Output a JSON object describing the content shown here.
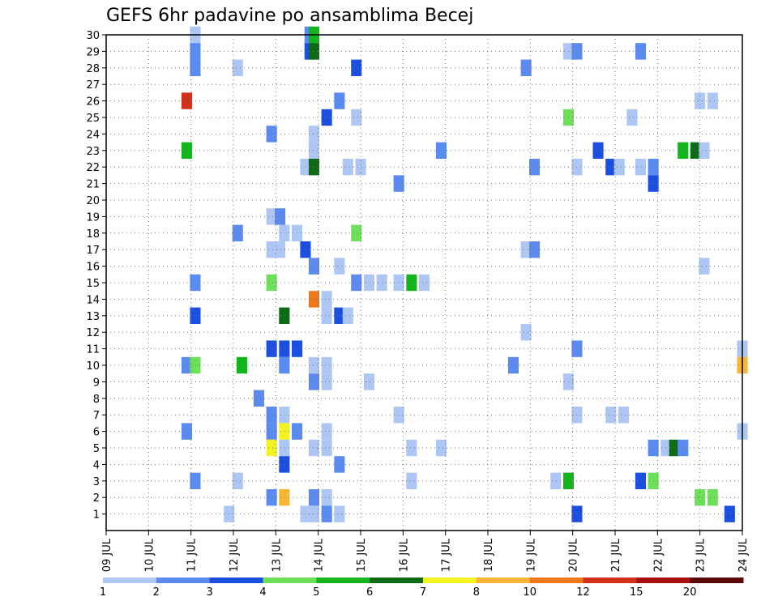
{
  "chart_data": {
    "type": "heatmap",
    "title": "GEFS 6hr padavine po ansamblima Becej",
    "xlabel": "",
    "ylabel": "",
    "x_ticks": [
      "09 JUL",
      "10 JUL",
      "11 JUL",
      "12 JUL",
      "13 JUL",
      "14 JUL",
      "15 JUL",
      "16 JUL",
      "17 JUL",
      "18 JUL",
      "19 JUL",
      "20 JUL",
      "21 JUL",
      "22 JUL",
      "23 JUL",
      "24 JUL"
    ],
    "x_range_days": [
      9,
      24
    ],
    "y_ticks": [
      1,
      2,
      3,
      4,
      5,
      6,
      7,
      8,
      9,
      10,
      11,
      12,
      13,
      14,
      15,
      16,
      17,
      18,
      19,
      20,
      21,
      22,
      23,
      24,
      25,
      26,
      27,
      28,
      29,
      30
    ],
    "y_range": [
      0,
      30
    ],
    "grid": true,
    "color_scale": {
      "labels": [
        "1",
        "2",
        "3",
        "4",
        "5",
        "6",
        "7",
        "8",
        "10",
        "12",
        "15",
        "20"
      ],
      "colors": [
        "#aec6f4",
        "#5b8af0",
        "#1c4fe0",
        "#6de05a",
        "#12b51c",
        "#0c6b14",
        "#f3f321",
        "#f6b637",
        "#f07818",
        "#d2301a",
        "#a80f0f",
        "#5a0a0a"
      ]
    },
    "note_values": "each cell = [day (x, fractional JUL day), member (y), precipitation class index into color_scale.colors]",
    "cells": [
      [
        11.1,
        30,
        0
      ],
      [
        13.8,
        30,
        1
      ],
      [
        13.9,
        30,
        4
      ],
      [
        11.1,
        29,
        1
      ],
      [
        13.8,
        29,
        2
      ],
      [
        13.9,
        29,
        5
      ],
      [
        19.9,
        29,
        0
      ],
      [
        20.1,
        29,
        1
      ],
      [
        21.6,
        29,
        1
      ],
      [
        11.1,
        28,
        1
      ],
      [
        12.1,
        28,
        0
      ],
      [
        14.9,
        28,
        2
      ],
      [
        18.9,
        28,
        1
      ],
      [
        10.9,
        26,
        9
      ],
      [
        14.5,
        26,
        1
      ],
      [
        23.0,
        26,
        0
      ],
      [
        23.3,
        26,
        0
      ],
      [
        14.2,
        25,
        2
      ],
      [
        14.9,
        25,
        0
      ],
      [
        19.9,
        25,
        3
      ],
      [
        21.4,
        25,
        0
      ],
      [
        12.9,
        24,
        1
      ],
      [
        13.9,
        24,
        0
      ],
      [
        10.9,
        23,
        4
      ],
      [
        13.9,
        23,
        0
      ],
      [
        16.9,
        23,
        1
      ],
      [
        20.6,
        23,
        2
      ],
      [
        22.6,
        23,
        4
      ],
      [
        22.9,
        23,
        5
      ],
      [
        23.1,
        23,
        0
      ],
      [
        13.7,
        22,
        0
      ],
      [
        13.9,
        22,
        5
      ],
      [
        14.7,
        22,
        0
      ],
      [
        15.0,
        22,
        0
      ],
      [
        19.1,
        22,
        1
      ],
      [
        20.1,
        22,
        0
      ],
      [
        20.9,
        22,
        2
      ],
      [
        21.1,
        22,
        0
      ],
      [
        21.6,
        22,
        0
      ],
      [
        21.9,
        22,
        1
      ],
      [
        15.9,
        21,
        1
      ],
      [
        21.9,
        21,
        2
      ],
      [
        12.9,
        19,
        0
      ],
      [
        13.1,
        19,
        1
      ],
      [
        12.1,
        18,
        1
      ],
      [
        13.2,
        18,
        0
      ],
      [
        13.5,
        18,
        0
      ],
      [
        14.9,
        18,
        3
      ],
      [
        12.9,
        17,
        0
      ],
      [
        13.1,
        17,
        0
      ],
      [
        13.7,
        17,
        2
      ],
      [
        18.9,
        17,
        0
      ],
      [
        19.1,
        17,
        1
      ],
      [
        13.9,
        16,
        1
      ],
      [
        14.5,
        16,
        0
      ],
      [
        23.1,
        16,
        0
      ],
      [
        11.1,
        15,
        1
      ],
      [
        12.9,
        15,
        3
      ],
      [
        14.9,
        15,
        1
      ],
      [
        15.2,
        15,
        0
      ],
      [
        15.5,
        15,
        0
      ],
      [
        15.9,
        15,
        0
      ],
      [
        16.2,
        15,
        4
      ],
      [
        16.5,
        15,
        0
      ],
      [
        13.9,
        14,
        8
      ],
      [
        14.2,
        14,
        0
      ],
      [
        11.1,
        13,
        2
      ],
      [
        13.2,
        13,
        5
      ],
      [
        14.2,
        13,
        0
      ],
      [
        14.5,
        13,
        2
      ],
      [
        14.7,
        13,
        0
      ],
      [
        18.9,
        12,
        0
      ],
      [
        12.9,
        11,
        2
      ],
      [
        13.2,
        11,
        2
      ],
      [
        13.5,
        11,
        2
      ],
      [
        20.1,
        11,
        1
      ],
      [
        24.0,
        11,
        0
      ],
      [
        10.9,
        10,
        1
      ],
      [
        11.1,
        10,
        3
      ],
      [
        12.2,
        10,
        4
      ],
      [
        13.2,
        10,
        1
      ],
      [
        13.9,
        10,
        0
      ],
      [
        14.2,
        10,
        0
      ],
      [
        18.6,
        10,
        1
      ],
      [
        24.0,
        10,
        7
      ],
      [
        13.9,
        9,
        1
      ],
      [
        14.2,
        9,
        0
      ],
      [
        15.2,
        9,
        0
      ],
      [
        19.9,
        9,
        0
      ],
      [
        12.6,
        8,
        1
      ],
      [
        12.9,
        7,
        1
      ],
      [
        13.2,
        7,
        0
      ],
      [
        15.9,
        7,
        0
      ],
      [
        20.1,
        7,
        0
      ],
      [
        20.9,
        7,
        0
      ],
      [
        21.2,
        7,
        0
      ],
      [
        10.9,
        6,
        1
      ],
      [
        12.9,
        6,
        1
      ],
      [
        13.2,
        6,
        6
      ],
      [
        13.5,
        6,
        1
      ],
      [
        14.2,
        6,
        0
      ],
      [
        24.0,
        6,
        0
      ],
      [
        12.9,
        5,
        6
      ],
      [
        13.2,
        5,
        0
      ],
      [
        13.9,
        5,
        0
      ],
      [
        14.2,
        5,
        0
      ],
      [
        16.2,
        5,
        0
      ],
      [
        16.9,
        5,
        0
      ],
      [
        21.9,
        5,
        1
      ],
      [
        22.2,
        5,
        0
      ],
      [
        22.4,
        5,
        5
      ],
      [
        22.6,
        5,
        1
      ],
      [
        13.2,
        4,
        2
      ],
      [
        14.5,
        4,
        1
      ],
      [
        11.1,
        3,
        1
      ],
      [
        12.1,
        3,
        0
      ],
      [
        16.2,
        3,
        0
      ],
      [
        19.6,
        3,
        0
      ],
      [
        19.9,
        3,
        4
      ],
      [
        21.6,
        3,
        2
      ],
      [
        21.9,
        3,
        3
      ],
      [
        12.9,
        2,
        1
      ],
      [
        13.2,
        2,
        7
      ],
      [
        13.9,
        2,
        1
      ],
      [
        14.2,
        2,
        0
      ],
      [
        23.0,
        2,
        3
      ],
      [
        23.3,
        2,
        3
      ],
      [
        11.9,
        1,
        0
      ],
      [
        13.7,
        1,
        0
      ],
      [
        13.9,
        1,
        0
      ],
      [
        14.2,
        1,
        1
      ],
      [
        14.5,
        1,
        0
      ],
      [
        20.1,
        1,
        2
      ],
      [
        23.7,
        1,
        2
      ]
    ]
  }
}
